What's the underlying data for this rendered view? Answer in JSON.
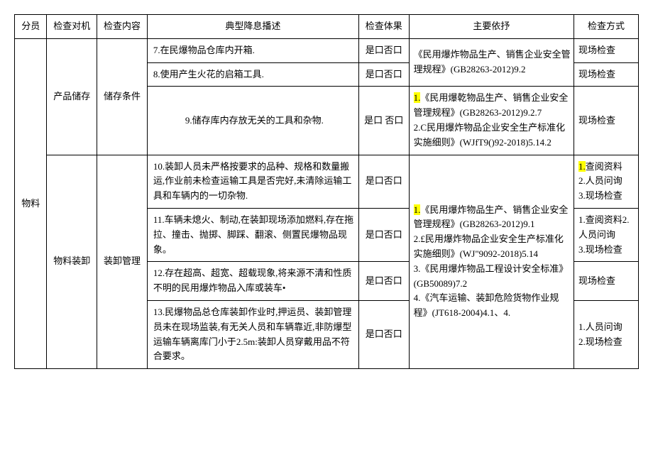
{
  "headers": {
    "category": "分员",
    "object": "检查对机",
    "content": "检查内容",
    "description": "典型降息播述",
    "result": "检查体果",
    "basis": "主要依抒",
    "method": "检查方式"
  },
  "category_label": "物料",
  "section1": {
    "object": "产品储存",
    "content": "储存条件",
    "rows": [
      {
        "desc": "7.在民爆物品仓库内开箱.",
        "result": "是口否口",
        "basis": "《民用爆炸物品生产、销售企业安全管理规程》(GB28263-2012)9.2",
        "method": "现场检查"
      },
      {
        "desc": "8.使用产生火花的启箱工具.",
        "result": "是口否口",
        "basis": "",
        "method": "现场检查"
      },
      {
        "desc": "9.储存库内存放无关的工具和杂物.",
        "result": "是口 否口",
        "basis_hl": "1.",
        "basis": "《民用爆乾物品生产、销售企业安全管理规程》(GB28263-2012)9.2.7\n2.C民用爆炸物品企业安全生产标准化实施细则》(WJfT9()92-2018)5.14.2",
        "method": "现场检查"
      }
    ]
  },
  "section2": {
    "object": "物料装卸",
    "content": "装卸管理",
    "basis_hl": "1.",
    "basis_combined": "《民用爆炸物品生产、销售企业安全管理规程》(GB28263-2012)9.1\n2.£民用爆炸物品企业安全生产标准化实施细则》(WJ\"9092-2018)5.14\n3.《民用爆炸物品工程设计安全标准》(GB50089)7.2\n4.《汽车运输、装卸危险货物作业规程》(JT618-2004)4.1、4.",
    "rows": [
      {
        "desc": "10.装卸人员未严格按要求的品种、规格和数量搬运,作业前未检查运输工具是否完好,未清除运输工具和车辆内的一切杂物.",
        "result": "是口否口",
        "method_hl": "1.",
        "method": "查阅资料\n2.人员问询\n3.现场检查"
      },
      {
        "desc": "11.车辆未熄火、制动,在装卸现场添加燃料,存在拖拉、撞击、抛掷、脚踩、翻滚、侧置民爆物品现象。",
        "result": "是口否口",
        "method": "1.查阅资料2.人员问询\n3.现场检查"
      },
      {
        "desc": "12.存在超高、超宽、超载现象,将来源不清和性质不明的民用爆炸物品入库或装车•",
        "result": "是口否口",
        "method": "现场检查"
      },
      {
        "desc": "13.民爆物品总仓库装卸作业时,押运员、装卸管理员未在现场监装,有无关人员和车辆靠近,非防爆型运输车辆离库门小于2.5m:装卸人员穿戴用品不符合要求。",
        "result": "是口否口",
        "method": "1.人员问询\n2.现场检查"
      }
    ]
  },
  "colors": {
    "highlight": "#ffff00",
    "border": "#000000",
    "bg": "#ffffff",
    "text": "#000000"
  },
  "font_size": 13
}
